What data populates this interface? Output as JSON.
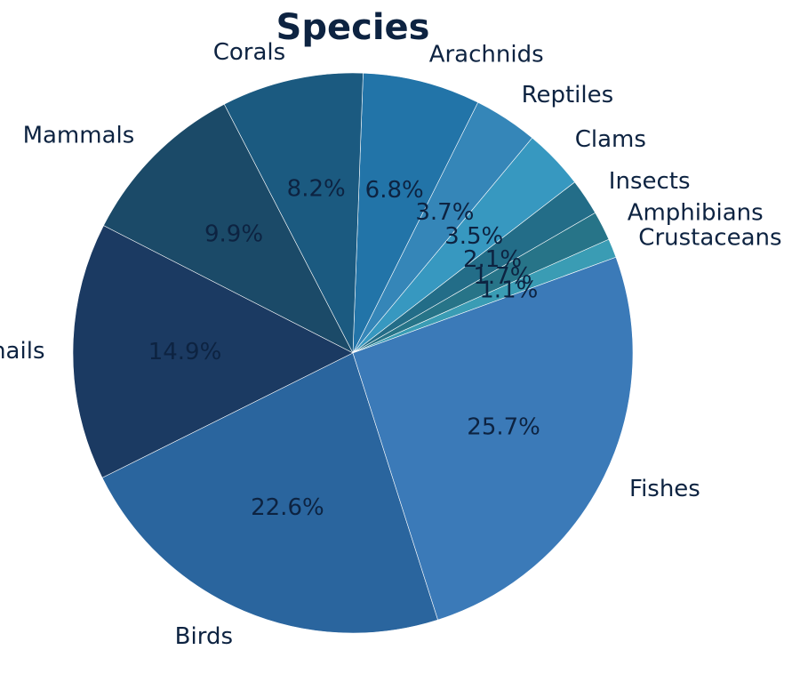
{
  "chart_data": {
    "type": "pie",
    "title": "Species",
    "start_angle_deg": 20,
    "direction": "counterclockwise",
    "slices": [
      {
        "label": "Crustaceans",
        "value": 1.1,
        "pct_text": "1.1%",
        "color": "#3a9cb4"
      },
      {
        "label": "Amphibians",
        "value": 1.7,
        "pct_text": "1.7%",
        "color": "#277488"
      },
      {
        "label": "Insects",
        "value": 2.1,
        "pct_text": "2.1%",
        "color": "#236d88"
      },
      {
        "label": "Clams",
        "value": 3.5,
        "pct_text": "3.5%",
        "color": "#3798c0"
      },
      {
        "label": "Reptiles",
        "value": 3.7,
        "pct_text": "3.7%",
        "color": "#3586b8"
      },
      {
        "label": "Arachnids",
        "value": 6.8,
        "pct_text": "6.8%",
        "color": "#2274a8"
      },
      {
        "label": "Corals",
        "value": 8.2,
        "pct_text": "8.2%",
        "color": "#1b5a80"
      },
      {
        "label": "Mammals",
        "value": 9.9,
        "pct_text": "9.9%",
        "color": "#1b4a68"
      },
      {
        "label": "Snails",
        "value": 14.9,
        "pct_text": "14.9%",
        "color": "#1b3a62"
      },
      {
        "label": "Birds",
        "value": 22.6,
        "pct_text": "22.6%",
        "color": "#2a659e"
      },
      {
        "label": "Fishes",
        "value": 25.7,
        "pct_text": "25.7%",
        "color": "#3b7ab8"
      }
    ]
  }
}
